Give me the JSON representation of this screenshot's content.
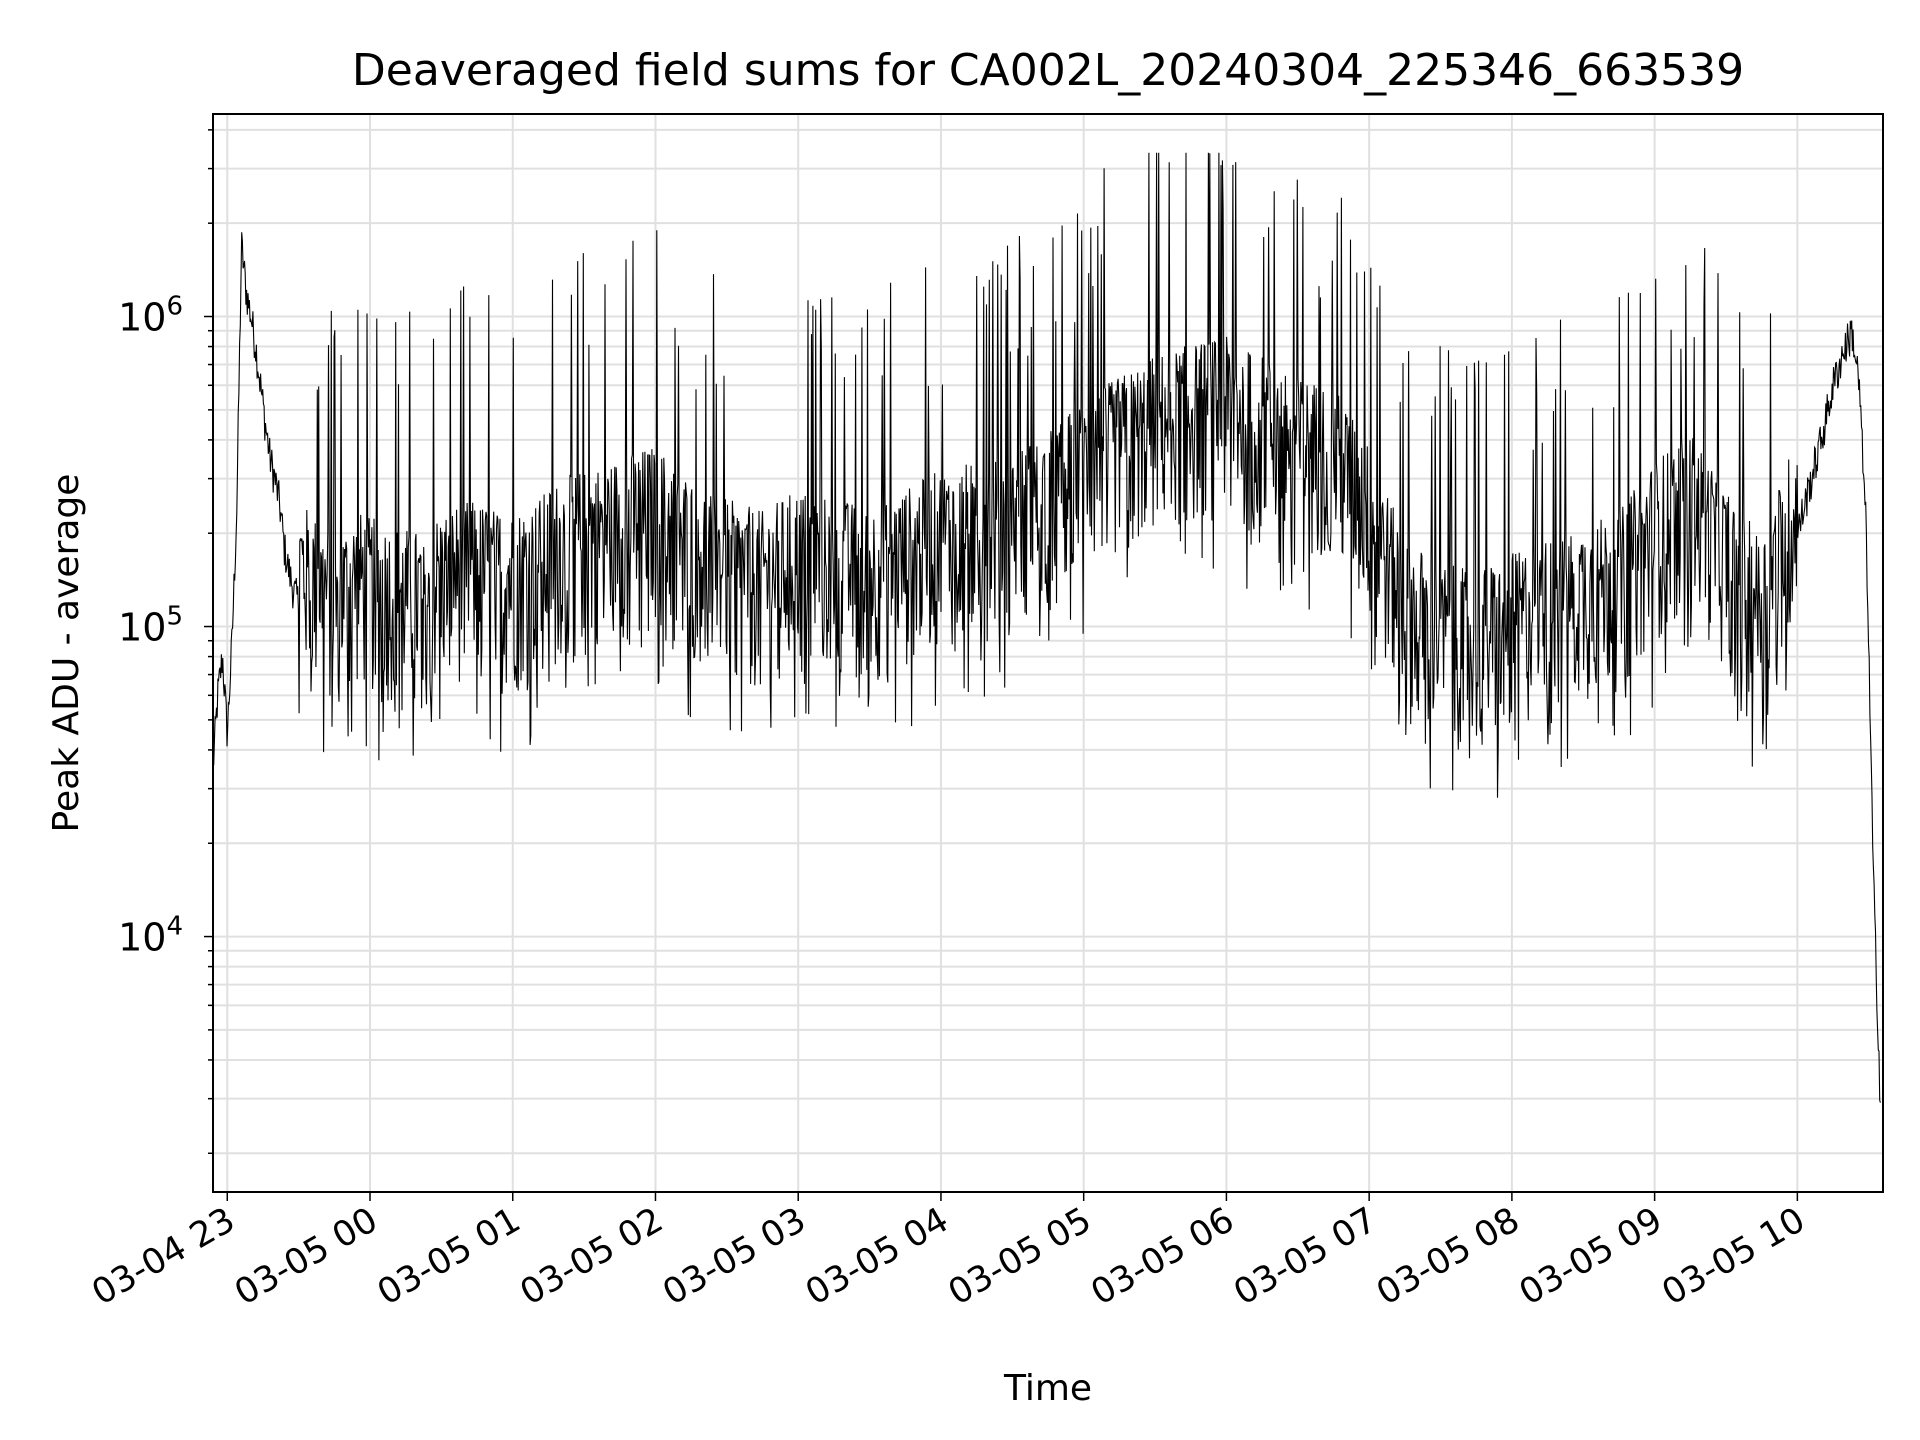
{
  "chart_data": {
    "type": "line",
    "title": "Deaveraged field sums for CA002L_20240304_225346_663539",
    "xlabel": "Time",
    "ylabel": "Peak ADU - average",
    "yscale": "log",
    "ylim": [
      1500,
      4500000
    ],
    "xlim": [
      "2024-03-04 22:54",
      "2024-03-05 10:36"
    ],
    "grid": true,
    "line_color": "#000000",
    "grid_color": "#e0e0e0",
    "x_ticks": [
      {
        "time": "2024-03-04 23:00",
        "label": "03-04 23"
      },
      {
        "time": "2024-03-05 00:00",
        "label": "03-05 00"
      },
      {
        "time": "2024-03-05 01:00",
        "label": "03-05 01"
      },
      {
        "time": "2024-03-05 02:00",
        "label": "03-05 02"
      },
      {
        "time": "2024-03-05 03:00",
        "label": "03-05 03"
      },
      {
        "time": "2024-03-05 04:00",
        "label": "03-05 04"
      },
      {
        "time": "2024-03-05 05:00",
        "label": "03-05 05"
      },
      {
        "time": "2024-03-05 06:00",
        "label": "03-05 06"
      },
      {
        "time": "2024-03-05 07:00",
        "label": "03-05 07"
      },
      {
        "time": "2024-03-05 08:00",
        "label": "03-05 08"
      },
      {
        "time": "2024-03-05 09:00",
        "label": "03-05 09"
      },
      {
        "time": "2024-03-05 10:00",
        "label": "03-05 10"
      }
    ],
    "y_ticks": [
      {
        "value": 10000,
        "base": "10",
        "exp": "4"
      },
      {
        "value": 100000,
        "base": "10",
        "exp": "5"
      },
      {
        "value": 1000000,
        "base": "10",
        "exp": "6"
      }
    ],
    "series": [
      {
        "x": [
          "2024-03-04 22:54",
          "2024-03-04 22:56",
          "2024-03-04 22:58",
          "2024-03-04 23:00",
          "2024-03-04 23:02",
          "2024-03-04 23:04",
          "2024-03-04 23:06",
          "2024-03-04 23:08",
          "2024-03-04 23:10",
          "2024-03-04 23:12",
          "2024-03-04 23:14",
          "2024-03-04 23:16",
          "2024-03-04 23:18",
          "2024-03-04 23:20",
          "2024-03-04 23:22",
          "2024-03-04 23:24",
          "2024-03-04 23:26",
          "2024-03-04 23:28",
          "2024-03-04 23:30",
          "2024-03-04 23:35",
          "2024-03-04 23:40",
          "2024-03-04 23:45",
          "2024-03-04 23:50",
          "2024-03-04 23:55",
          "2024-03-05 00:00",
          "2024-03-05 00:10",
          "2024-03-05 00:20",
          "2024-03-05 00:30",
          "2024-03-05 00:40",
          "2024-03-05 00:50",
          "2024-03-05 01:00",
          "2024-03-05 01:10",
          "2024-03-05 01:20",
          "2024-03-05 01:30",
          "2024-03-05 01:40",
          "2024-03-05 01:50",
          "2024-03-05 02:00",
          "2024-03-05 02:15",
          "2024-03-05 02:30",
          "2024-03-05 02:45",
          "2024-03-05 03:00",
          "2024-03-05 03:15",
          "2024-03-05 03:30",
          "2024-03-05 03:45",
          "2024-03-05 04:00",
          "2024-03-05 04:15",
          "2024-03-05 04:30",
          "2024-03-05 04:45",
          "2024-03-05 05:00",
          "2024-03-05 05:15",
          "2024-03-05 05:30",
          "2024-03-05 05:45",
          "2024-03-05 06:00",
          "2024-03-05 06:15",
          "2024-03-05 06:30",
          "2024-03-05 06:45",
          "2024-03-05 07:00",
          "2024-03-05 07:15",
          "2024-03-05 07:30",
          "2024-03-05 07:45",
          "2024-03-05 08:00",
          "2024-03-05 08:15",
          "2024-03-05 08:30",
          "2024-03-05 08:45",
          "2024-03-05 09:00",
          "2024-03-05 09:15",
          "2024-03-05 09:30",
          "2024-03-05 09:45",
          "2024-03-05 10:00",
          "2024-03-05 10:10",
          "2024-03-05 10:15",
          "2024-03-05 10:20",
          "2024-03-05 10:23",
          "2024-03-05 10:26",
          "2024-03-05 10:29",
          "2024-03-05 10:32",
          "2024-03-05 10:35"
        ],
        "y": [
          35000,
          60000,
          80000,
          45000,
          90000,
          240000,
          1700000,
          1200000,
          1000000,
          800000,
          600000,
          450000,
          350000,
          300000,
          250000,
          180000,
          150000,
          130000,
          120000,
          110000,
          100000,
          95000,
          100000,
          110000,
          105000,
          100000,
          95000,
          110000,
          120000,
          115000,
          110000,
          120000,
          140000,
          150000,
          160000,
          170000,
          180000,
          140000,
          120000,
          110000,
          130000,
          120000,
          115000,
          130000,
          150000,
          160000,
          170000,
          200000,
          250000,
          300000,
          350000,
          380000,
          400000,
          350000,
          300000,
          280000,
          180000,
          90000,
          75000,
          70000,
          80000,
          90000,
          100000,
          110000,
          160000,
          200000,
          130000,
          90000,
          200000,
          400000,
          600000,
          800000,
          900000,
          600000,
          200000,
          15000,
          2800
        ]
      }
    ]
  }
}
